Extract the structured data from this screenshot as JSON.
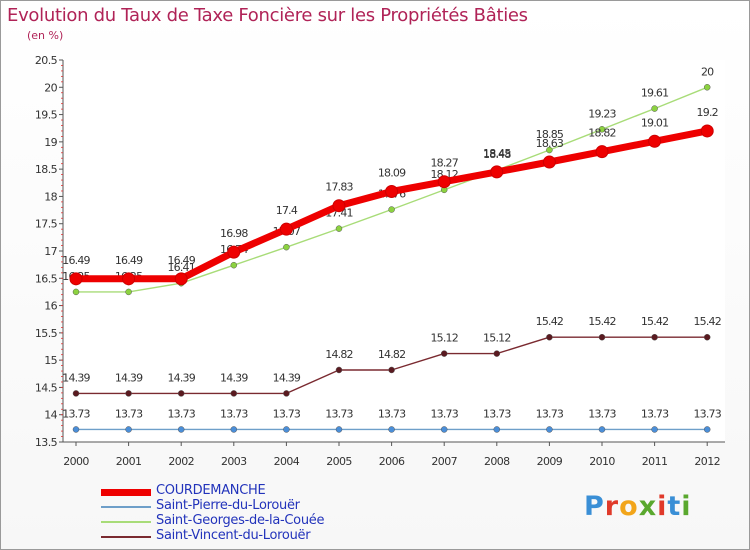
{
  "title": "Evolution du Taux de Taxe Foncière sur les Propriétés Bâties",
  "unit_label": "(en %)",
  "logo": {
    "text": "Proxiti",
    "letters": [
      "P",
      "r",
      "o",
      "x",
      "i",
      "t",
      "i"
    ],
    "colors": [
      "#3a8fd6",
      "#e03a2a",
      "#f2a51a",
      "#5aa82e",
      "#e03a2a",
      "#3a8fd6",
      "#5aa82e"
    ]
  },
  "chart_data": {
    "type": "line",
    "title": "Evolution du Taux de Taxe Foncière sur les Propriétés Bâties",
    "ylabel": "(en %)",
    "xlabel": "",
    "x": [
      2000,
      2001,
      2002,
      2003,
      2004,
      2005,
      2006,
      2007,
      2008,
      2009,
      2010,
      2011,
      2012
    ],
    "x_labels": [
      "2000",
      "2001",
      "2002",
      "2003",
      "2004",
      "2005",
      "2006",
      "2007",
      "2008",
      "2009",
      "2010",
      "2011",
      "2012"
    ],
    "ylim": [
      13.5,
      20.5
    ],
    "y_ticks": [
      13.5,
      14,
      14.5,
      15,
      15.5,
      16,
      16.5,
      17,
      17.5,
      18,
      18.5,
      19,
      19.5,
      20,
      20.5
    ],
    "y_tick_labels": [
      "13.5",
      "14",
      "14.5",
      "15",
      "15.5",
      "16",
      "16.5",
      "17",
      "17.5",
      "18",
      "18.5",
      "19",
      "19.5",
      "20",
      "20.5"
    ],
    "grid": false,
    "series": [
      {
        "name": "Saint-Pierre-du-Lorouër",
        "color": "#6e9fc9",
        "marker": "#4a8ed8",
        "values": [
          13.73,
          13.73,
          13.73,
          13.73,
          13.73,
          13.73,
          13.73,
          13.73,
          13.73,
          13.73,
          13.73,
          13.73,
          13.73
        ],
        "labels": [
          "13.73",
          "13.73",
          "13.73",
          "13.73",
          "13.73",
          "13.73",
          "13.73",
          "13.73",
          "13.73",
          "13.73",
          "13.73",
          "13.73",
          "13.73"
        ]
      },
      {
        "name": "Saint-Vincent-du-Lorouër",
        "color": "#7a2a30",
        "marker": "#5a1a20",
        "values": [
          14.39,
          14.39,
          14.39,
          14.39,
          14.39,
          14.82,
          14.82,
          15.12,
          15.12,
          15.42,
          15.42,
          15.42,
          15.42
        ],
        "labels": [
          "14.39",
          "14.39",
          "14.39",
          "14.39",
          "14.39",
          "14.82",
          "14.82",
          "15.12",
          "15.12",
          "15.42",
          "15.42",
          "15.42",
          "15.42"
        ]
      },
      {
        "name": "Saint-Georges-de-la-Couée",
        "color": "#a8dc78",
        "marker": "#8cd240",
        "values": [
          16.25,
          16.25,
          16.41,
          16.74,
          17.07,
          17.41,
          17.76,
          18.12,
          18.48,
          18.85,
          19.23,
          19.61,
          20
        ],
        "labels": [
          "16.25",
          "16.25",
          "16.41",
          "16.74",
          "17.07",
          "17.41",
          "17.76",
          "18.12",
          "18.48",
          "18.85",
          "19.23",
          "19.61",
          "20"
        ]
      },
      {
        "name": "COURDEMANCHE",
        "color": "#ee0000",
        "marker": "#ee0000",
        "values": [
          16.49,
          16.49,
          16.49,
          16.98,
          17.4,
          17.83,
          18.09,
          18.27,
          18.45,
          18.63,
          18.82,
          19.01,
          19.2
        ],
        "labels": [
          "16.49",
          "16.49",
          "16.49",
          "16.98",
          "17.4",
          "17.83",
          "18.09",
          "18.27",
          "18.45",
          "18.63",
          "18.82",
          "19.01",
          "19.2"
        ]
      }
    ],
    "legend": [
      {
        "name": "COURDEMANCHE",
        "color": "#ee0000",
        "width": 7
      },
      {
        "name": "Saint-Pierre-du-Lorouër",
        "color": "#6e9fc9",
        "width": 2
      },
      {
        "name": "Saint-Georges-de-la-Couée",
        "color": "#a8dc78",
        "width": 2
      },
      {
        "name": "Saint-Vincent-du-Lorouër",
        "color": "#7a2a30",
        "width": 2
      }
    ]
  }
}
